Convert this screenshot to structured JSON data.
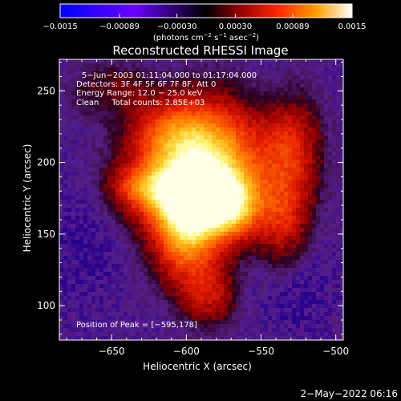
{
  "colorbar": {
    "tick_labels": [
      "−0.0015",
      "−0.00089",
      "−0.00030",
      "0.00030",
      "0.00089",
      "0.0015"
    ],
    "unit_prefix": "(photons cm",
    "unit_exp1": "−2",
    "unit_mid": " s",
    "unit_exp2": "−1",
    "unit_mid2": " asec",
    "unit_exp3": "−2",
    "unit_suffix": ")"
  },
  "chart_data": {
    "type": "heatmap",
    "title": "Reconstructed RHESSI Image",
    "xlabel": "Heliocentric X (arcsec)",
    "ylabel": "Heliocentric Y (arcsec)",
    "xlim": [
      -685,
      -495
    ],
    "ylim": [
      76,
      272
    ],
    "x_ticks": [
      -650,
      -600,
      -550,
      -500
    ],
    "x_tick_labels": [
      "−650",
      "−600",
      "−550",
      "−500"
    ],
    "y_ticks": [
      100,
      150,
      200,
      250
    ],
    "y_tick_labels": [
      "100",
      "150",
      "200",
      "250"
    ],
    "color_range": [
      -0.0015,
      0.0015
    ],
    "peak": [
      -595,
      178
    ],
    "annotations": {
      "time_range": "5−Jun−2003 01:11:04.000 to 01:17:04.000",
      "detectors": "Detectors: 3F 4F 5F 6F 7F 8F, Att 0",
      "energy": "Energy Range: 12.0 − 25.0 keV",
      "clean": "Clean     Total counts: 2.85E+03",
      "peak_label": "Position of Peak = [−595,178]"
    }
  },
  "footer": {
    "timestamp": "2−May−2022 06:16"
  }
}
